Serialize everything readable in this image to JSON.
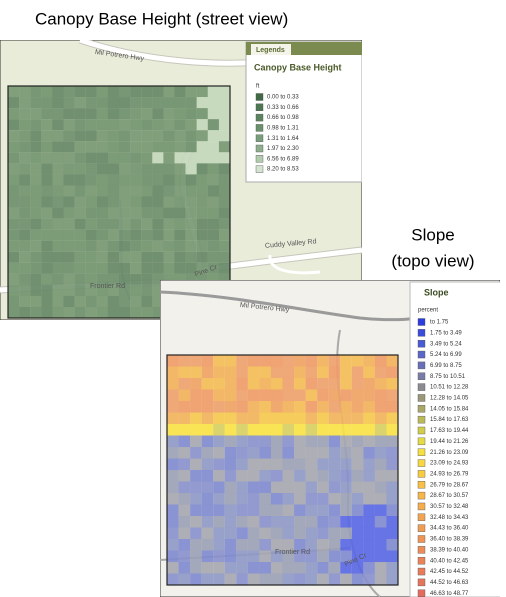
{
  "title_street": "Canopy Base Height (street view)",
  "title_topo": [
    "Slope",
    "(topo view)"
  ],
  "street_map": {
    "roads": [
      "Mil Potrero Hwy",
      "Cuddy Valley Rd",
      "Frontier Rd",
      "Pine Cr"
    ],
    "legend": {
      "tab": "Legends",
      "title": "Canopy Base Height",
      "unit": "ft",
      "items": [
        {
          "label": "0.00 to 0.33",
          "color": "#3f6a45"
        },
        {
          "label": "0.33 to 0.66",
          "color": "#4d7752"
        },
        {
          "label": "0.66 to 0.98",
          "color": "#5b835f"
        },
        {
          "label": "0.98 to 1.31",
          "color": "#6a906c"
        },
        {
          "label": "1.31 to 1.64",
          "color": "#7a9d7b"
        },
        {
          "label": "1.97 to 2.30",
          "color": "#8eae8d"
        },
        {
          "label": "6.56 to 6.89",
          "color": "#b2cbae"
        },
        {
          "label": "8.20 to 8.53",
          "color": "#d4e3cf"
        }
      ]
    }
  },
  "topo_map": {
    "roads": [
      "Mil Potrero Hwy",
      "Frontier Rd",
      "Pine Cr"
    ],
    "legend": {
      "title": "Slope",
      "unit": "percent",
      "items": [
        {
          "label": "to 1.75",
          "color": "#2b3de0"
        },
        {
          "label": "1.75 to 3.49",
          "color": "#3a4cdc"
        },
        {
          "label": "3.49 to 5.24",
          "color": "#4a5ad4"
        },
        {
          "label": "5.24 to 6.99",
          "color": "#5a66c8"
        },
        {
          "label": "6.99 to 8.75",
          "color": "#6a70b8"
        },
        {
          "label": "8.75 to 10.51",
          "color": "#7a7ca8"
        },
        {
          "label": "10.51 to 12.28",
          "color": "#8a8a90"
        },
        {
          "label": "12.28 to 14.05",
          "color": "#9a9878"
        },
        {
          "label": "14.05 to 15.84",
          "color": "#aaa868"
        },
        {
          "label": "15.84 to 17.63",
          "color": "#bcba58"
        },
        {
          "label": "17.63 to 19.44",
          "color": "#d0cc4c"
        },
        {
          "label": "19.44 to 21.26",
          "color": "#e4dc44"
        },
        {
          "label": "21.26 to 23.09",
          "color": "#f4e040"
        },
        {
          "label": "23.09 to 24.93",
          "color": "#f8d840"
        },
        {
          "label": "24.93 to 26.79",
          "color": "#f8cc40"
        },
        {
          "label": "26.79 to 28.67",
          "color": "#f8c044"
        },
        {
          "label": "28.67 to 30.57",
          "color": "#f6b648"
        },
        {
          "label": "30.57 to 32.48",
          "color": "#f4ac4c"
        },
        {
          "label": "32.48 to 34.43",
          "color": "#f2a450"
        },
        {
          "label": "34.43 to 36.40",
          "color": "#f09c52"
        },
        {
          "label": "36.40 to 38.39",
          "color": "#ee9454"
        },
        {
          "label": "38.39 to 40.40",
          "color": "#ec8c56"
        },
        {
          "label": "40.40 to 42.45",
          "color": "#ea8458"
        },
        {
          "label": "42.45 to 44.52",
          "color": "#e87c5a"
        },
        {
          "label": "44.52 to 46.63",
          "color": "#e6745c"
        },
        {
          "label": "46.63 to 48.77",
          "color": "#e46c5e"
        }
      ]
    }
  }
}
